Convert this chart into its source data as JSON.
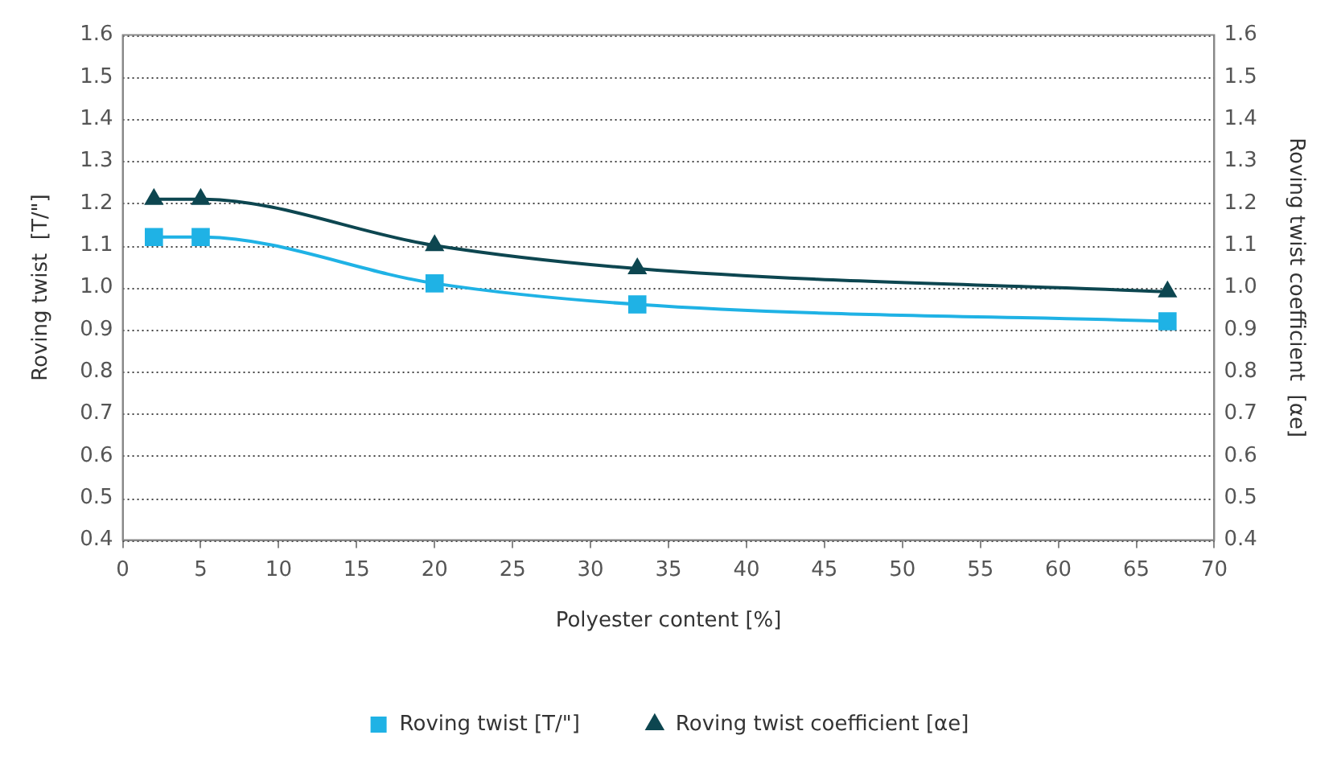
{
  "chart_data": {
    "type": "line",
    "xlabel": "Polyester content [%]",
    "ylabel": "Roving twist  [T/\"]",
    "y2label": "Roving twist coefficient  [αe]",
    "x": [
      2,
      5,
      20,
      33,
      67
    ],
    "series": [
      {
        "name": "Roving twist [T/\"]",
        "color": "#1fb2e5",
        "values": [
          1.12,
          1.12,
          1.01,
          0.96,
          0.92
        ],
        "marker": "square"
      },
      {
        "name": "Roving twist coefficient [αe]",
        "color": "#0d4650",
        "values": [
          1.21,
          1.21,
          1.1,
          1.045,
          0.99
        ],
        "marker": "triangle",
        "axis": "y2"
      }
    ],
    "xlim": [
      0,
      70
    ],
    "xticks": [
      0,
      5,
      10,
      15,
      20,
      25,
      30,
      35,
      40,
      45,
      50,
      55,
      60,
      65,
      70
    ],
    "ylim": [
      0.4,
      1.6
    ],
    "yticks": [
      {
        "value": 0.4,
        "label": "0.4"
      },
      {
        "value": 0.5,
        "label": "0.5"
      },
      {
        "value": 0.6,
        "label": "0.6"
      },
      {
        "value": 0.7,
        "label": "0.7"
      },
      {
        "value": 0.8,
        "label": "0.8"
      },
      {
        "value": 0.9,
        "label": "0.9"
      },
      {
        "value": 1.0,
        "label": "1.0"
      },
      {
        "value": 1.1,
        "label": "1.1"
      },
      {
        "value": 1.2,
        "label": "1.2"
      },
      {
        "value": 1.3,
        "label": "1.3"
      },
      {
        "value": 1.4,
        "label": "1.4"
      },
      {
        "value": 1.5,
        "label": "1.5"
      },
      {
        "value": 1.6,
        "label": "1.6"
      }
    ],
    "y2lim": [
      0.4,
      1.6
    ],
    "y2ticks": [
      {
        "value": 0.4,
        "label": "0.4"
      },
      {
        "value": 0.5,
        "label": "0.5"
      },
      {
        "value": 0.6,
        "label": "0.6"
      },
      {
        "value": 0.7,
        "label": "0.7"
      },
      {
        "value": 0.8,
        "label": "0.8"
      },
      {
        "value": 0.9,
        "label": "0.9"
      },
      {
        "value": 1.0,
        "label": "1.0"
      },
      {
        "value": 1.1,
        "label": "1.1"
      },
      {
        "value": 1.2,
        "label": "1.2"
      },
      {
        "value": 1.3,
        "label": "1.3"
      },
      {
        "value": 1.4,
        "label": "1.4"
      },
      {
        "value": 1.5,
        "label": "1.5"
      },
      {
        "value": 1.6,
        "label": "1.6"
      }
    ],
    "grid": "y",
    "legend": "bottom",
    "line_style": "solid"
  }
}
